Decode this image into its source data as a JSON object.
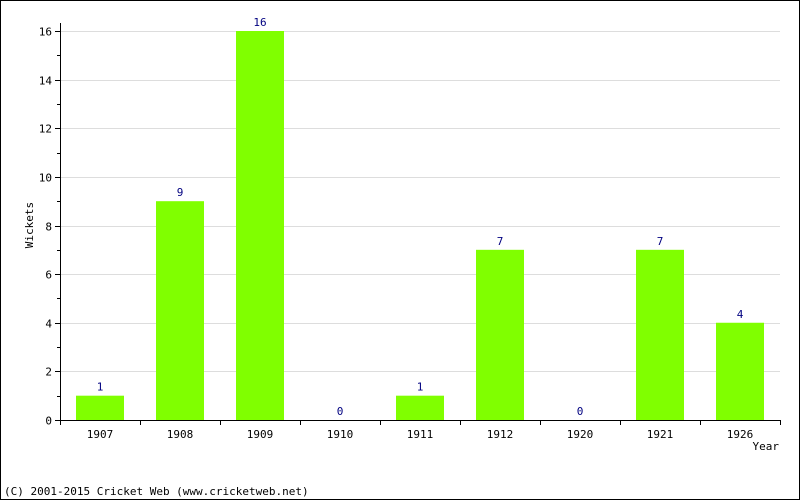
{
  "chart_data": {
    "type": "bar",
    "categories": [
      "1907",
      "1908",
      "1909",
      "1910",
      "1911",
      "1912",
      "1920",
      "1921",
      "1926"
    ],
    "values": [
      1,
      9,
      16,
      0,
      1,
      7,
      0,
      7,
      4
    ],
    "xlabel": "Year",
    "ylabel": "Wickets",
    "ylim": [
      0,
      16
    ],
    "yticks": [
      0,
      2,
      4,
      6,
      8,
      10,
      12,
      14,
      16
    ],
    "grid": true,
    "bar_color": "#80ff00",
    "value_label_color": "#000080"
  },
  "footer": {
    "copyright": "(C) 2001-2015 Cricket Web (www.cricketweb.net)"
  }
}
